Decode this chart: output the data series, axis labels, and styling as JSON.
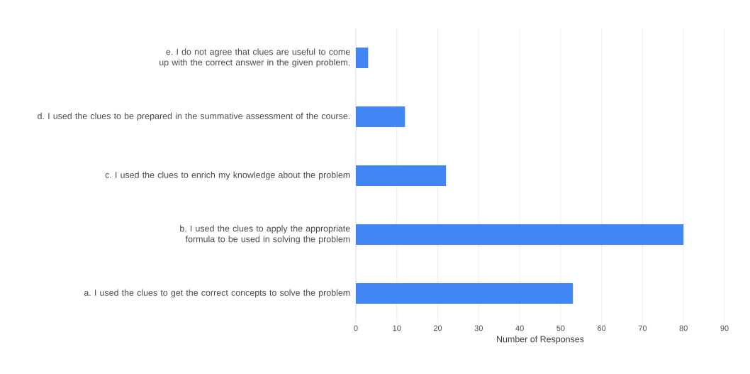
{
  "chart_data": {
    "type": "bar",
    "orientation": "horizontal",
    "categories": [
      "e. I do not agree that clues are useful to come up with the correct answer in the given problem.",
      "d. I used the clues to be prepared in the summative assessment of the course.",
      "c. I used the clues to enrich my knowledge about the problem",
      "b. I used the clues to apply the appropriate formula to be used in solving the problem",
      "a. I used the clues to get the correct concepts to solve the problem"
    ],
    "values": [
      3,
      12,
      22,
      80,
      53
    ],
    "color": "#4285f4",
    "xlabel": "Number of Responses",
    "xlim": [
      0,
      90
    ],
    "xticks": [
      0,
      10,
      20,
      30,
      40,
      50,
      60,
      70,
      80,
      90
    ],
    "grid": "x"
  }
}
